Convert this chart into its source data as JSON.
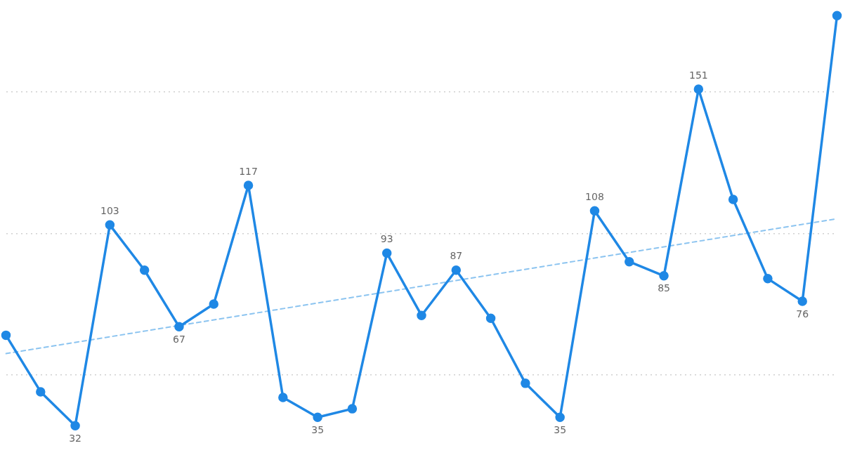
{
  "chart_data": {
    "type": "line",
    "marker": "circle",
    "grid": "y",
    "categories": [
      null,
      null,
      null,
      null,
      null,
      null,
      null,
      null,
      null,
      null,
      null,
      null,
      null,
      null,
      null,
      null,
      null,
      null,
      null,
      null,
      null,
      null,
      null,
      null,
      null
    ],
    "yticks": [
      {
        "value": 50,
        "label": null
      },
      {
        "value": 100,
        "label": null
      },
      {
        "value": 150,
        "label": null
      }
    ],
    "series": [
      {
        "color": "#1f88e5",
        "line_style": "solid",
        "values": [
          64,
          44,
          32,
          103,
          87,
          67,
          75,
          117,
          42,
          35,
          38,
          93,
          71,
          87,
          70,
          47,
          35,
          108,
          90,
          85,
          151,
          112,
          84,
          76,
          177
        ],
        "value_labels": [
          null,
          null,
          "32",
          "103",
          null,
          "67",
          null,
          "117",
          null,
          "35",
          null,
          "93",
          null,
          "87",
          null,
          null,
          "35",
          "108",
          null,
          "85",
          "151",
          null,
          null,
          "76",
          null
        ]
      },
      {
        "color": "#8cc4f0",
        "line_style": "dashed",
        "marker": "none",
        "values": [
          57.5,
          null,
          null,
          null,
          null,
          null,
          null,
          null,
          null,
          null,
          null,
          null,
          null,
          null,
          null,
          null,
          null,
          null,
          null,
          null,
          null,
          null,
          null,
          null,
          105.2
        ]
      }
    ]
  }
}
